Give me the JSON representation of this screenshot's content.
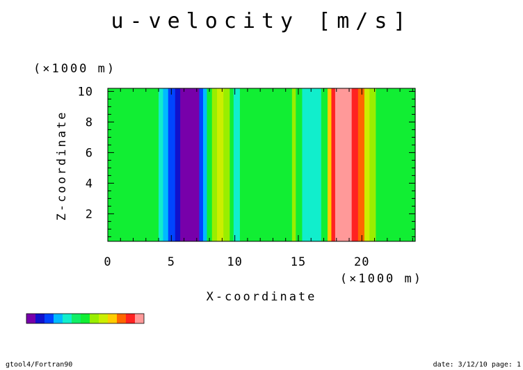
{
  "chart_data": {
    "type": "heatmap",
    "title": "u-velocity [m/s]",
    "xlabel": "X-coordinate",
    "ylabel": "Z-coordinate",
    "x_scale_label": "(×1000 m)",
    "y_scale_label": "(×1000 m)",
    "xlim": [
      0,
      24.2
    ],
    "ylim": [
      0.2,
      10.2
    ],
    "x_ticks": [
      "0",
      "5",
      "10",
      "15",
      "20"
    ],
    "y_ticks": [
      "2",
      "4",
      "6",
      "8",
      "10"
    ],
    "x_tick_values": [
      0,
      5,
      10,
      15,
      20
    ],
    "y_tick_values": [
      2,
      4,
      6,
      8,
      10
    ],
    "bands": [
      {
        "from": 0.0,
        "to": 4.0,
        "color": "#11ee33"
      },
      {
        "from": 4.0,
        "to": 4.35,
        "color": "#11eecc"
      },
      {
        "from": 4.35,
        "to": 4.75,
        "color": "#00bbff"
      },
      {
        "from": 4.75,
        "to": 5.3,
        "color": "#0044ff"
      },
      {
        "from": 5.3,
        "to": 5.7,
        "color": "#1111cc"
      },
      {
        "from": 5.7,
        "to": 7.2,
        "color": "#7700aa"
      },
      {
        "from": 7.2,
        "to": 7.5,
        "color": "#0044ff"
      },
      {
        "from": 7.5,
        "to": 7.8,
        "color": "#00bbff"
      },
      {
        "from": 7.8,
        "to": 8.2,
        "color": "#11ee33"
      },
      {
        "from": 8.2,
        "to": 8.6,
        "color": "#99ee00"
      },
      {
        "from": 8.6,
        "to": 9.1,
        "color": "#ccee00"
      },
      {
        "from": 9.1,
        "to": 9.6,
        "color": "#99ee00"
      },
      {
        "from": 9.6,
        "to": 9.9,
        "color": "#11ee33"
      },
      {
        "from": 9.9,
        "to": 10.4,
        "color": "#11eecc"
      },
      {
        "from": 10.4,
        "to": 14.5,
        "color": "#11ee33"
      },
      {
        "from": 14.5,
        "to": 14.8,
        "color": "#99ee00"
      },
      {
        "from": 14.8,
        "to": 15.3,
        "color": "#11ee33"
      },
      {
        "from": 15.3,
        "to": 15.8,
        "color": "#11eecc"
      },
      {
        "from": 15.8,
        "to": 16.8,
        "color": "#11eecc"
      },
      {
        "from": 16.8,
        "to": 17.3,
        "color": "#11ee33"
      },
      {
        "from": 17.3,
        "to": 17.6,
        "color": "#ffcc00"
      },
      {
        "from": 17.6,
        "to": 17.9,
        "color": "#ff2222"
      },
      {
        "from": 17.9,
        "to": 19.2,
        "color": "#ff9999"
      },
      {
        "from": 19.2,
        "to": 19.7,
        "color": "#ff2222"
      },
      {
        "from": 19.7,
        "to": 20.2,
        "color": "#ff6600"
      },
      {
        "from": 20.2,
        "to": 20.6,
        "color": "#ccee00"
      },
      {
        "from": 20.6,
        "to": 21.1,
        "color": "#99ee00"
      },
      {
        "from": 21.1,
        "to": 24.2,
        "color": "#11ee33"
      }
    ],
    "colorbar": [
      "#7700aa",
      "#1111cc",
      "#0044ff",
      "#00bbff",
      "#11eecc",
      "#11ee66",
      "#11ee33",
      "#99ee00",
      "#ccee00",
      "#ffcc00",
      "#ff6600",
      "#ff2222",
      "#ff9999"
    ]
  },
  "footer": {
    "left": "gtool4/Fortran90",
    "right": "date: 3/12/10 page: 1"
  }
}
